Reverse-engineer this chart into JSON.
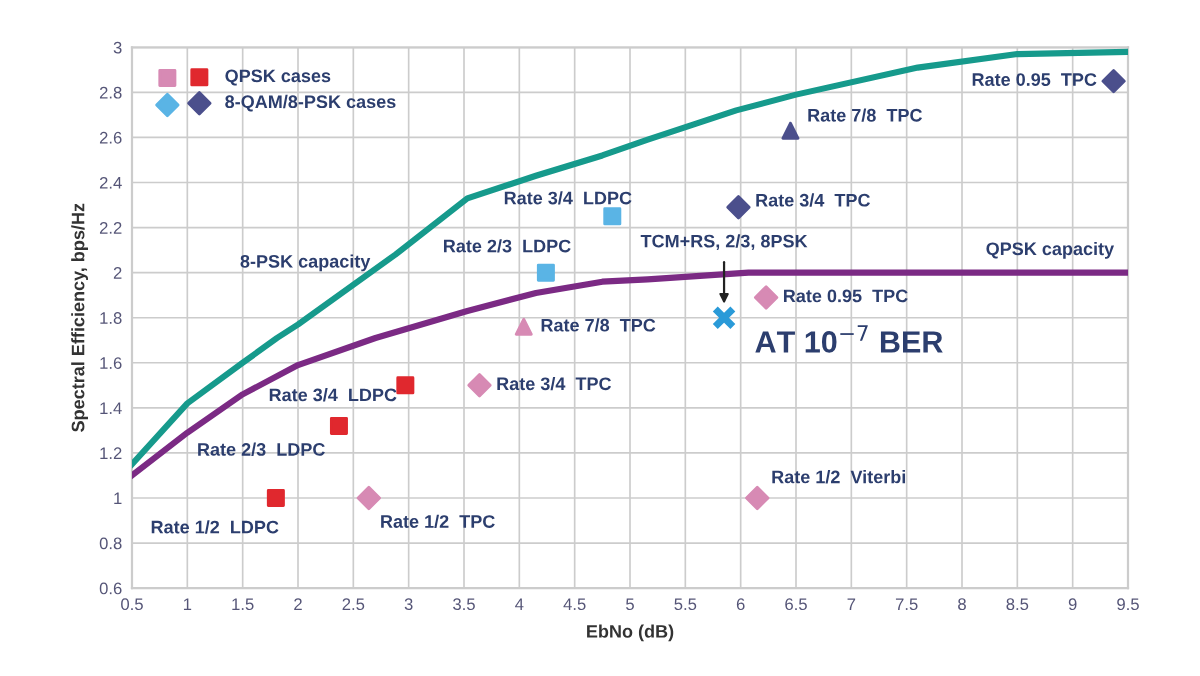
{
  "chart_data": {
    "type": "scatter",
    "xlabel": "EbNo (dB)",
    "ylabel": "Spectral Efficiency, bps/Hz",
    "xlim": [
      0.5,
      9.5
    ],
    "ylim": [
      0.6,
      3
    ],
    "xticks": [
      0.5,
      1,
      1.5,
      2,
      2.5,
      3,
      3.5,
      4,
      4.5,
      5,
      5.5,
      6,
      6.5,
      7,
      7.5,
      8,
      8.5,
      9,
      9.5
    ],
    "yticks": [
      0.6,
      0.8,
      1,
      1.2,
      1.4,
      1.6,
      1.8,
      2,
      2.2,
      2.4,
      2.6,
      2.8,
      3
    ],
    "grid": true,
    "legend": "top left",
    "series": [
      {
        "name": "8-PSK capacity",
        "type": "line",
        "color": "#169a8c",
        "x": [
          0.5,
          1,
          1.5,
          1.81,
          2,
          2.88,
          3.53,
          4.15,
          4.75,
          5.16,
          5.96,
          6.5,
          7.6,
          8.5,
          9.5
        ],
        "values": [
          1.15,
          1.42,
          1.6,
          1.71,
          1.77,
          2.08,
          2.33,
          2.43,
          2.52,
          2.59,
          2.72,
          2.79,
          2.91,
          2.97,
          2.98
        ]
      },
      {
        "name": "QPSK capacity",
        "type": "line",
        "color": "#7b2a84",
        "x": [
          0.5,
          1,
          1.5,
          2,
          2.7,
          3.53,
          4.15,
          4.75,
          5.16,
          6.07,
          7,
          8,
          9.5
        ],
        "values": [
          1.1,
          1.29,
          1.46,
          1.59,
          1.71,
          1.83,
          1.91,
          1.96,
          1.97,
          2.0,
          2.0,
          2.0,
          2.0
        ]
      },
      {
        "marker": "diamond",
        "color": "#d78ab4",
        "x": [
          2.64,
          3.64,
          6.23,
          6.15
        ],
        "values": [
          1.0,
          1.5,
          1.89,
          1.0
        ]
      },
      {
        "marker": "triangle",
        "color": "#d78ab4",
        "x": [
          4.04
        ],
        "values": [
          1.76
        ]
      },
      {
        "name": "QPSK cases",
        "marker": "square",
        "color": "#e0282e",
        "x": [
          1.8,
          2.37,
          2.97
        ],
        "values": [
          1.0,
          1.32,
          1.5
        ]
      },
      {
        "marker": "square",
        "color": "#5ab4e5",
        "x": [
          4.24,
          4.84
        ],
        "values": [
          2.0,
          2.25
        ]
      },
      {
        "marker": "triangle",
        "color": "#4b4f8c",
        "x": [
          6.45
        ],
        "values": [
          2.63
        ]
      },
      {
        "name": "8-QAM/8-PSK cases",
        "marker": "diamond",
        "color": "#4b4f8c",
        "x": [
          5.98,
          9.37
        ],
        "values": [
          2.29,
          2.85
        ]
      },
      {
        "marker": "cross",
        "color": "#2a9ad8",
        "x": [
          5.85
        ],
        "values": [
          1.8
        ]
      }
    ],
    "annotations": [
      {
        "text": "Rate 1/2  LDPC",
        "x": 1.8,
        "y": 1.0
      },
      {
        "text": "Rate 2/3  LDPC",
        "x": 2.37,
        "y": 1.32
      },
      {
        "text": "Rate 3/4  LDPC",
        "x": 2.97,
        "y": 1.5
      },
      {
        "text": "Rate 1/2  TPC",
        "x": 2.64,
        "y": 1.0
      },
      {
        "text": "Rate 3/4  TPC",
        "x": 3.64,
        "y": 1.5
      },
      {
        "text": "Rate 7/8  TPC",
        "x": 4.04,
        "y": 1.76
      },
      {
        "text": "Rate 0.95  TPC",
        "x": 6.23,
        "y": 1.89
      },
      {
        "text": "Rate 1/2  Viterbi",
        "x": 6.15,
        "y": 1.0
      },
      {
        "text": "Rate 2/3  LDPC",
        "x": 4.24,
        "y": 2.0
      },
      {
        "text": "Rate 3/4  LDPC",
        "x": 4.84,
        "y": 2.25
      },
      {
        "text": "Rate 3/4  TPC",
        "x": 5.98,
        "y": 2.29
      },
      {
        "text": "Rate 7/8  TPC",
        "x": 6.45,
        "y": 2.63
      },
      {
        "text": "Rate 0.95  TPC",
        "x": 9.37,
        "y": 2.85
      },
      {
        "text": "TCM+RS, 2/3, 8PSK",
        "x": 5.85,
        "y": 1.8
      },
      "AT 10$^{−7}$ BER"
    ]
  }
}
